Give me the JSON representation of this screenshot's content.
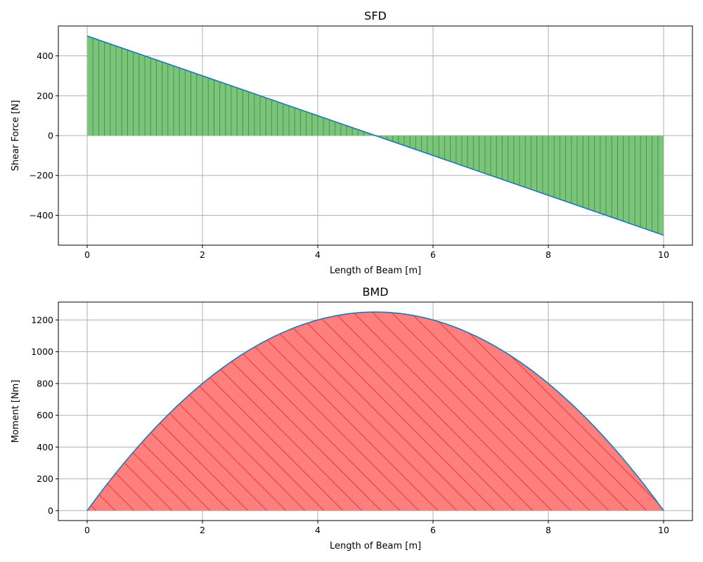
{
  "chart_data": [
    {
      "type": "area",
      "title": "SFD",
      "xlabel": "Length of Beam [m]",
      "ylabel": "Shear Force [N]",
      "xlim": [
        -0.5,
        10.5
      ],
      "ylim": [
        -550,
        550
      ],
      "xticks": [
        0,
        2,
        4,
        6,
        8,
        10
      ],
      "xtick_labels": [
        "0",
        "2",
        "4",
        "6",
        "8",
        "10"
      ],
      "yticks": [
        -400,
        -200,
        0,
        200,
        400
      ],
      "ytick_labels": [
        "−400",
        "−200",
        "0",
        "200",
        "400"
      ],
      "grid": true,
      "series": [
        {
          "name": "Shear Force",
          "x": [
            0,
            10
          ],
          "y": [
            500,
            -500
          ],
          "line_color": "#1f77b4",
          "fill_color": "#7cc47c",
          "hatch": "vertical",
          "hatch_color": "#3f9a3f"
        }
      ]
    },
    {
      "type": "area",
      "title": "BMD",
      "xlabel": "Length of Beam [m]",
      "ylabel": "Moment [Nm]",
      "xlim": [
        -0.5,
        10.5
      ],
      "ylim": [
        -62.5,
        1312.5
      ],
      "xticks": [
        0,
        2,
        4,
        6,
        8,
        10
      ],
      "xtick_labels": [
        "0",
        "2",
        "4",
        "6",
        "8",
        "10"
      ],
      "yticks": [
        0,
        200,
        400,
        600,
        800,
        1000,
        1200
      ],
      "ytick_labels": [
        "0",
        "200",
        "400",
        "600",
        "800",
        "1000",
        "1200"
      ],
      "grid": true,
      "series": [
        {
          "name": "Moment",
          "x": [
            0,
            1,
            2,
            3,
            4,
            5,
            6,
            7,
            8,
            9,
            10
          ],
          "y": [
            0,
            450,
            800,
            1050,
            1200,
            1250,
            1200,
            1050,
            800,
            450,
            0
          ],
          "line_color": "#1f77b4",
          "fill_color": "#ff7f7f",
          "hatch": "diagonal",
          "hatch_color": "#e83a3a"
        }
      ]
    }
  ]
}
